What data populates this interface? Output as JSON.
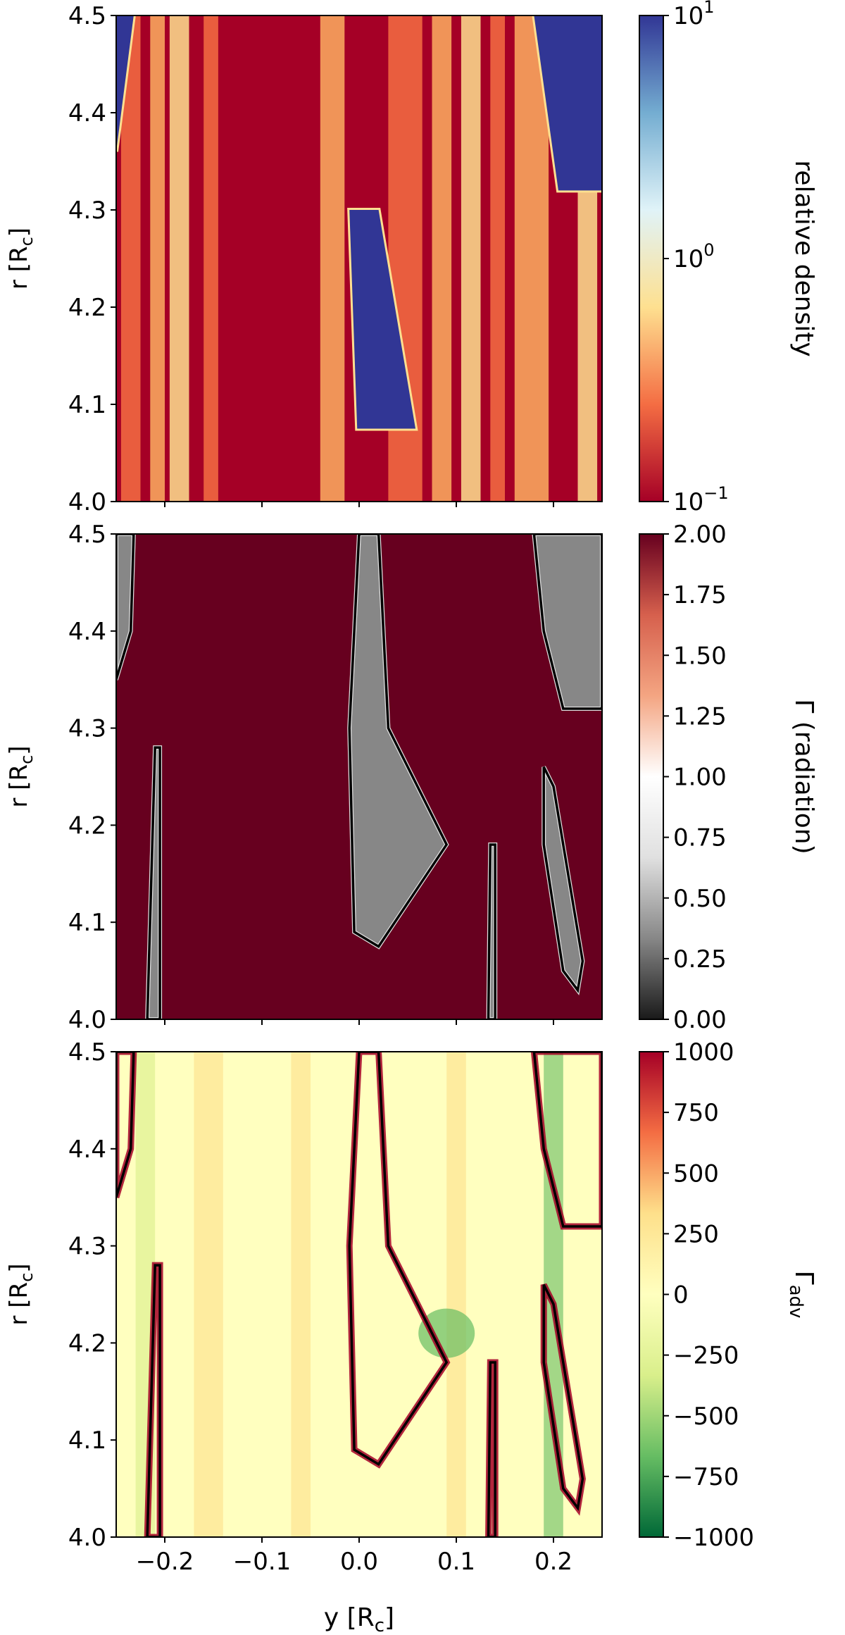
{
  "figure": {
    "xlabel": "y [R",
    "xlabel_sub": "c",
    "xlabel_end": "]"
  },
  "chart_data": [
    {
      "type": "heatmap",
      "ylabel": "r [R",
      "ylabel_sub": "c",
      "ylabel_end": "]",
      "xlim": [
        -0.25,
        0.25
      ],
      "ylim": [
        4.0,
        4.5
      ],
      "x_ticks": [
        "−0.2",
        "−0.1",
        "0.0",
        "0.1",
        "0.2"
      ],
      "x_tick_labels_shown": false,
      "y_ticks": [
        "4.0",
        "4.1",
        "4.2",
        "4.3",
        "4.4",
        "4.5"
      ],
      "colorbar": {
        "label": "relative density",
        "scale": "log",
        "range": [
          0.1,
          10
        ],
        "colormap": "RdYlBu",
        "colors": [
          "#a50026",
          "#f46d43",
          "#fee090",
          "#e0f3f8",
          "#74add1",
          "#313695"
        ],
        "ticks": [
          {
            "base": "10",
            "exp": "1",
            "value": 10
          },
          {
            "base": "10",
            "exp": "0",
            "value": 1
          },
          {
            "base": "10",
            "exp": "−1",
            "value": 0.1
          }
        ]
      },
      "features": [
        {
          "kind": "dense-blue",
          "x_left_bottom": -0.002,
          "x_right_bottom": 0.058,
          "x_left_top": -0.01,
          "x_right_top": 0.02,
          "y_bottom": 4.075,
          "y_top": 4.3
        },
        {
          "kind": "dense-blue",
          "x_left_bottom": 0.205,
          "x_right_bottom": 0.25,
          "x_left_top": 0.18,
          "x_right_top": 0.25,
          "y_bottom": 4.32,
          "y_top": 4.5
        },
        {
          "kind": "dense-blue",
          "x_left_bottom": -0.25,
          "x_right_bottom": -0.25,
          "x_left_top": -0.25,
          "x_right_top": -0.232,
          "y_bottom": 4.36,
          "y_top": 4.5
        }
      ]
    },
    {
      "type": "heatmap",
      "ylabel": "r [R",
      "ylabel_sub": "c",
      "ylabel_end": "]",
      "xlim": [
        -0.25,
        0.25
      ],
      "ylim": [
        4.0,
        4.5
      ],
      "x_ticks": [
        "−0.2",
        "−0.1",
        "0.0",
        "0.1",
        "0.2"
      ],
      "x_tick_labels_shown": false,
      "y_ticks": [
        "4.0",
        "4.1",
        "4.2",
        "4.3",
        "4.4",
        "4.5"
      ],
      "colorbar": {
        "label": "Γ (radiation)",
        "scale": "linear",
        "range": [
          0.0,
          2.0
        ],
        "colormap": "RdGy_r",
        "colors": [
          "#1a1a1a",
          "#878787",
          "#e0e0e0",
          "#ffffff",
          "#f4a582",
          "#d6604d",
          "#67001f"
        ],
        "ticks": [
          "2.00",
          "1.75",
          "1.50",
          "1.25",
          "1.00",
          "0.75",
          "0.50",
          "0.25",
          "0.00"
        ]
      },
      "background_value": 2.0,
      "contour_level": 1.0
    },
    {
      "type": "heatmap",
      "ylabel": "r [R",
      "ylabel_sub": "c",
      "ylabel_end": "]",
      "xlabel": "y [Rc]",
      "xlim": [
        -0.25,
        0.25
      ],
      "ylim": [
        4.0,
        4.5
      ],
      "x_ticks": [
        "−0.2",
        "−0.1",
        "0.0",
        "0.1",
        "0.2"
      ],
      "x_tick_labels_shown": true,
      "y_ticks": [
        "4.0",
        "4.1",
        "4.2",
        "4.3",
        "4.4",
        "4.5"
      ],
      "colorbar": {
        "label": "Γ",
        "label_sub": "adv",
        "scale": "linear",
        "range": [
          -1000,
          1000
        ],
        "colormap": "RdYlGn_r",
        "colors": [
          "#006837",
          "#66bd63",
          "#d9ef8b",
          "#ffffbf",
          "#fee08b",
          "#f46d43",
          "#a50026"
        ],
        "ticks": [
          "1000",
          "750",
          "500",
          "250",
          "0",
          "−250",
          "−500",
          "−750",
          "−1000"
        ]
      },
      "background_value": 0,
      "contour_level": 1.0
    }
  ]
}
